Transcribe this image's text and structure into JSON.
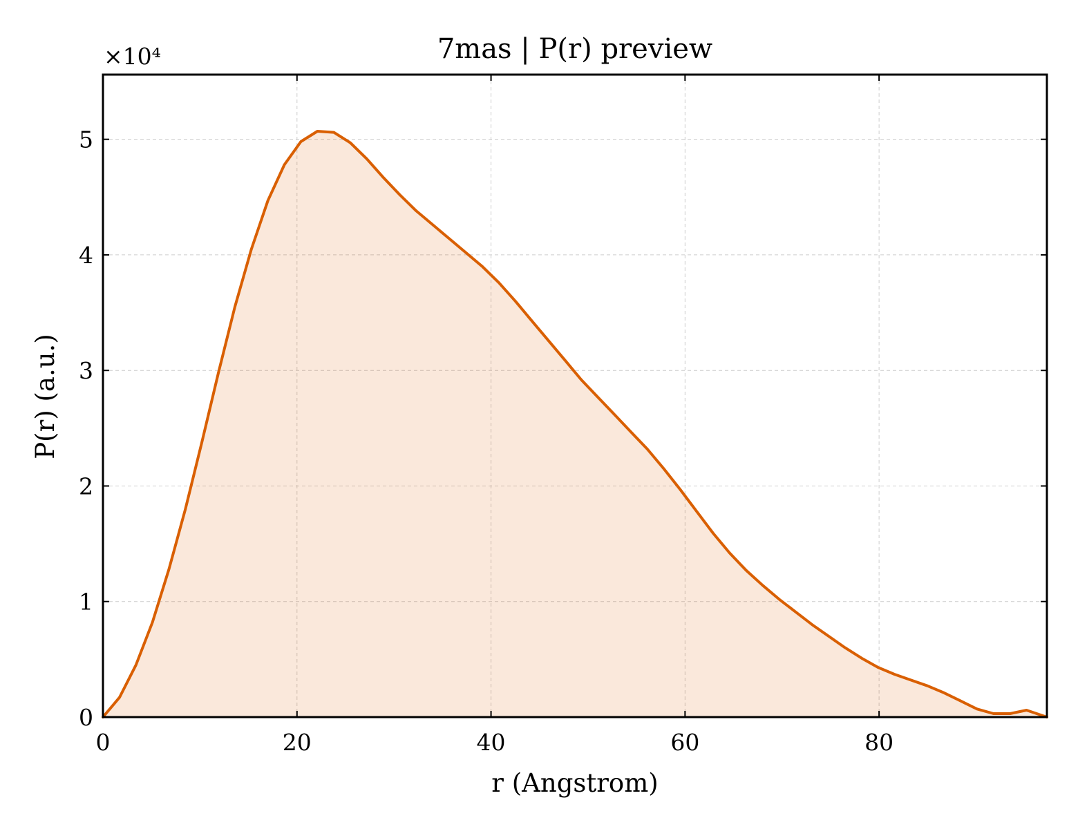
{
  "chart_data": {
    "type": "area",
    "title": "7mas | P(r) preview",
    "xlabel": "r (Angstrom)",
    "ylabel": "P(r) (a.u.)",
    "y_multiplier": "×10⁴",
    "xlim": [
      0,
      97.3
    ],
    "ylim": [
      0,
      5.56
    ],
    "xticks": [
      0,
      20,
      40,
      60,
      80
    ],
    "xtick_labels": [
      "0",
      "20",
      "40",
      "60",
      "80"
    ],
    "yticks": [
      0,
      1,
      2,
      3,
      4,
      5
    ],
    "ytick_labels": [
      "0",
      "1",
      "2",
      "3",
      "4",
      "5"
    ],
    "grid": true,
    "line_color": "#d95f02",
    "fill_color": "#d95f02",
    "fill_opacity": 0.14,
    "series": [
      {
        "x": [
          0,
          1.7,
          3.4,
          5.1,
          6.8,
          8.5,
          10.2,
          11.9,
          13.6,
          15.3,
          17.0,
          18.7,
          20.4,
          22.1,
          23.8,
          25.5,
          27.2,
          28.9,
          30.6,
          32.3,
          34.0,
          35.7,
          37.4,
          39.1,
          40.8,
          42.5,
          44.2,
          45.9,
          47.6,
          49.3,
          51.0,
          52.7,
          54.4,
          56.1,
          57.8,
          59.5,
          61.2,
          62.9,
          64.6,
          66.3,
          68.0,
          69.7,
          71.4,
          73.1,
          74.8,
          76.5,
          78.2,
          79.9,
          81.6,
          83.3,
          85.0,
          86.7,
          88.4,
          90.1,
          91.8,
          93.5,
          95.2,
          97.3
        ],
        "y": [
          0.0,
          0.17,
          0.45,
          0.82,
          1.28,
          1.8,
          2.38,
          2.98,
          3.55,
          4.05,
          4.47,
          4.78,
          4.98,
          5.07,
          5.06,
          4.97,
          4.83,
          4.67,
          4.52,
          4.38,
          4.26,
          4.14,
          4.02,
          3.9,
          3.76,
          3.6,
          3.43,
          3.26,
          3.09,
          2.92,
          2.77,
          2.62,
          2.47,
          2.32,
          2.15,
          1.97,
          1.78,
          1.59,
          1.42,
          1.27,
          1.14,
          1.02,
          0.91,
          0.8,
          0.7,
          0.6,
          0.51,
          0.43,
          0.37,
          0.32,
          0.27,
          0.21,
          0.14,
          0.07,
          0.03,
          0.03,
          0.06,
          0.0
        ]
      }
    ]
  }
}
